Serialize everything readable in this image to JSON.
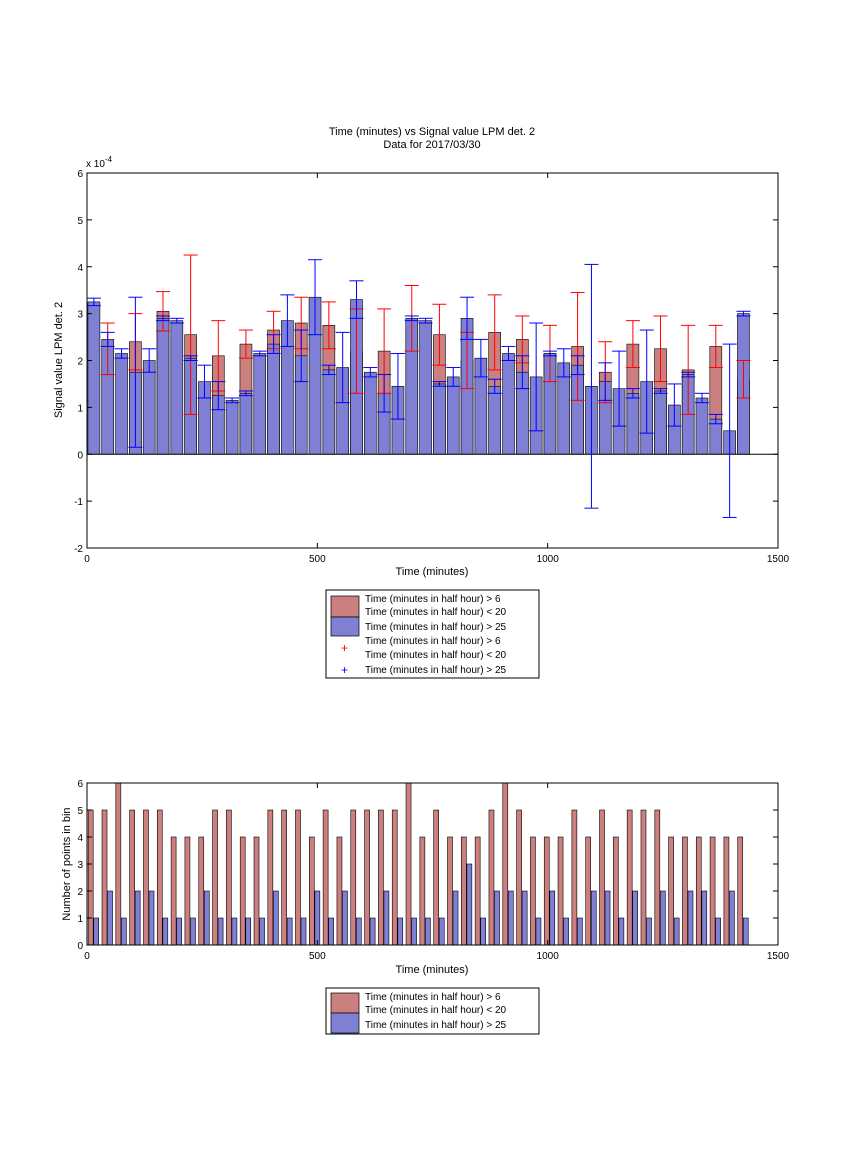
{
  "chart_data": [
    {
      "type": "bar",
      "title": "Time (minutes) vs Signal value LPM det. 2",
      "subtitle": "Data for 2017/03/30",
      "xlabel": "Time (minutes)",
      "ylabel": "Signal value LPM det. 2",
      "exponent_label": "x 10",
      "exponent_power": "-4",
      "xlim": [
        0,
        1500
      ],
      "ylim": [
        -2,
        6
      ],
      "y_scale": 0.0001,
      "xticks": [
        "0",
        "500",
        "1000",
        "1500"
      ],
      "yticks": [
        "-2",
        "-1",
        "0",
        "1",
        "2",
        "3",
        "4",
        "5",
        "6"
      ],
      "legend_position": "below-center",
      "legend": [
        {
          "kind": "bar",
          "color": "#cc7f7f",
          "lines": [
            "Time (minutes in half hour) > 6",
            "Time (minutes in half hour) < 20"
          ]
        },
        {
          "kind": "bar",
          "color": "#7f7fd3",
          "lines": [
            "Time (minutes in half hour) > 25"
          ]
        },
        {
          "kind": "marker",
          "color": "#ff0000",
          "lines": [
            "Time (minutes in half hour) > 6",
            "Time (minutes in half hour) < 20"
          ]
        },
        {
          "kind": "marker",
          "color": "#0000ff",
          "lines": [
            "Time (minutes in half hour) > 25"
          ]
        }
      ],
      "series": [
        {
          "name": "Time (minutes in half hour) > 6 / < 20",
          "color": "#cc7f7f",
          "errcolor": "#ff0000",
          "x": [
            45,
            105,
            165,
            225,
            285,
            345,
            405,
            465,
            525,
            585,
            645,
            705,
            765,
            825,
            885,
            945,
            1005,
            1065,
            1125,
            1185,
            1245,
            1305,
            1365,
            1425
          ],
          "values": [
            2.25,
            2.4,
            3.05,
            2.55,
            2.1,
            2.35,
            2.65,
            2.8,
            2.75,
            2.2,
            2.2,
            2.9,
            2.55,
            2.0,
            2.6,
            2.45,
            2.15,
            2.3,
            1.75,
            2.35,
            2.25,
            1.8,
            2.3,
            1.6
          ],
          "err": [
            0.55,
            0.6,
            0.42,
            1.7,
            0.75,
            0.3,
            0.4,
            0.55,
            0.5,
            0.9,
            0.9,
            0.7,
            0.65,
            0.6,
            0.8,
            0.5,
            0.6,
            1.15,
            0.65,
            0.5,
            0.7,
            0.95,
            0.45,
            0.4
          ]
        },
        {
          "name": "Time (minutes in half hour) > 25",
          "color": "#7f7fd3",
          "errcolor": "#0000ff",
          "x": [
            15,
            45,
            75,
            105,
            135,
            165,
            195,
            225,
            255,
            285,
            315,
            345,
            375,
            405,
            435,
            465,
            495,
            525,
            555,
            585,
            615,
            645,
            675,
            705,
            735,
            765,
            795,
            825,
            855,
            885,
            915,
            945,
            975,
            1005,
            1035,
            1065,
            1095,
            1125,
            1155,
            1185,
            1215,
            1245,
            1275,
            1305,
            1335,
            1365,
            1395,
            1425
          ],
          "values": [
            3.25,
            2.45,
            2.15,
            1.75,
            2.0,
            2.9,
            2.85,
            2.05,
            1.55,
            1.25,
            1.15,
            1.3,
            2.15,
            2.35,
            2.85,
            2.1,
            3.35,
            1.8,
            1.85,
            3.3,
            1.75,
            1.3,
            1.45,
            2.9,
            2.85,
            1.5,
            1.65,
            2.9,
            2.05,
            1.45,
            2.15,
            1.75,
            1.65,
            2.15,
            1.95,
            1.9,
            1.45,
            1.55,
            1.4,
            1.3,
            1.55,
            1.35,
            1.05,
            1.7,
            1.2,
            0.75,
            0.5,
            3.0
          ]
        }
      ]
    },
    {
      "type": "bar",
      "xlabel": "Time (minutes)",
      "ylabel": "Number of points in bin",
      "xlim": [
        0,
        1500
      ],
      "ylim": [
        0,
        6
      ],
      "xticks": [
        "0",
        "500",
        "1000",
        "1500"
      ],
      "yticks": [
        "0",
        "1",
        "2",
        "3",
        "4",
        "5",
        "6"
      ],
      "legend_position": "below-center",
      "legend": [
        {
          "kind": "bar",
          "color": "#cc7f7f",
          "lines": [
            "Time (minutes in half hour) > 6",
            "Time (minutes in half hour) < 20"
          ]
        },
        {
          "kind": "bar",
          "color": "#7f7fd3",
          "lines": [
            "Time (minutes in half hour) > 25"
          ]
        }
      ],
      "series": [
        {
          "name": "Time (minutes in half hour) > 6 / < 20",
          "color": "#cc7f7f",
          "x": [
            8,
            38,
            68,
            98,
            128,
            158,
            188,
            218,
            248,
            278,
            308,
            338,
            368,
            398,
            428,
            458,
            488,
            518,
            548,
            578,
            608,
            638,
            668,
            698,
            728,
            758,
            788,
            818,
            848,
            878,
            908,
            938,
            968,
            998,
            1028,
            1058,
            1088,
            1118,
            1148,
            1178,
            1208,
            1238,
            1268,
            1298,
            1328,
            1358,
            1388,
            1418
          ],
          "values": [
            5,
            5,
            6,
            5,
            5,
            5,
            4,
            4,
            4,
            5,
            5,
            4,
            4,
            5,
            5,
            5,
            4,
            5,
            4,
            5,
            5,
            5,
            5,
            6,
            4,
            5,
            4,
            4,
            4,
            5,
            6,
            5,
            4,
            4,
            4,
            5,
            4,
            5,
            4,
            5,
            5,
            5,
            4,
            4,
            4,
            4,
            4,
            4
          ]
        },
        {
          "name": "Time (minutes in half hour) > 25",
          "color": "#7f7fd3",
          "x": [
            20,
            50,
            80,
            110,
            140,
            170,
            200,
            230,
            260,
            290,
            320,
            350,
            380,
            410,
            440,
            470,
            500,
            530,
            560,
            590,
            620,
            650,
            680,
            710,
            740,
            770,
            800,
            830,
            860,
            890,
            920,
            950,
            980,
            1010,
            1040,
            1070,
            1100,
            1130,
            1160,
            1190,
            1220,
            1250,
            1280,
            1310,
            1340,
            1370,
            1400,
            1430
          ],
          "values": [
            1,
            2,
            1,
            2,
            2,
            1,
            1,
            1,
            2,
            1,
            1,
            1,
            1,
            2,
            1,
            1,
            2,
            1,
            2,
            1,
            1,
            2,
            1,
            1,
            1,
            1,
            2,
            3,
            1,
            2,
            2,
            2,
            1,
            2,
            1,
            1,
            2,
            2,
            1,
            2,
            1,
            2,
            1,
            2,
            2,
            1,
            2,
            1
          ]
        }
      ]
    }
  ]
}
